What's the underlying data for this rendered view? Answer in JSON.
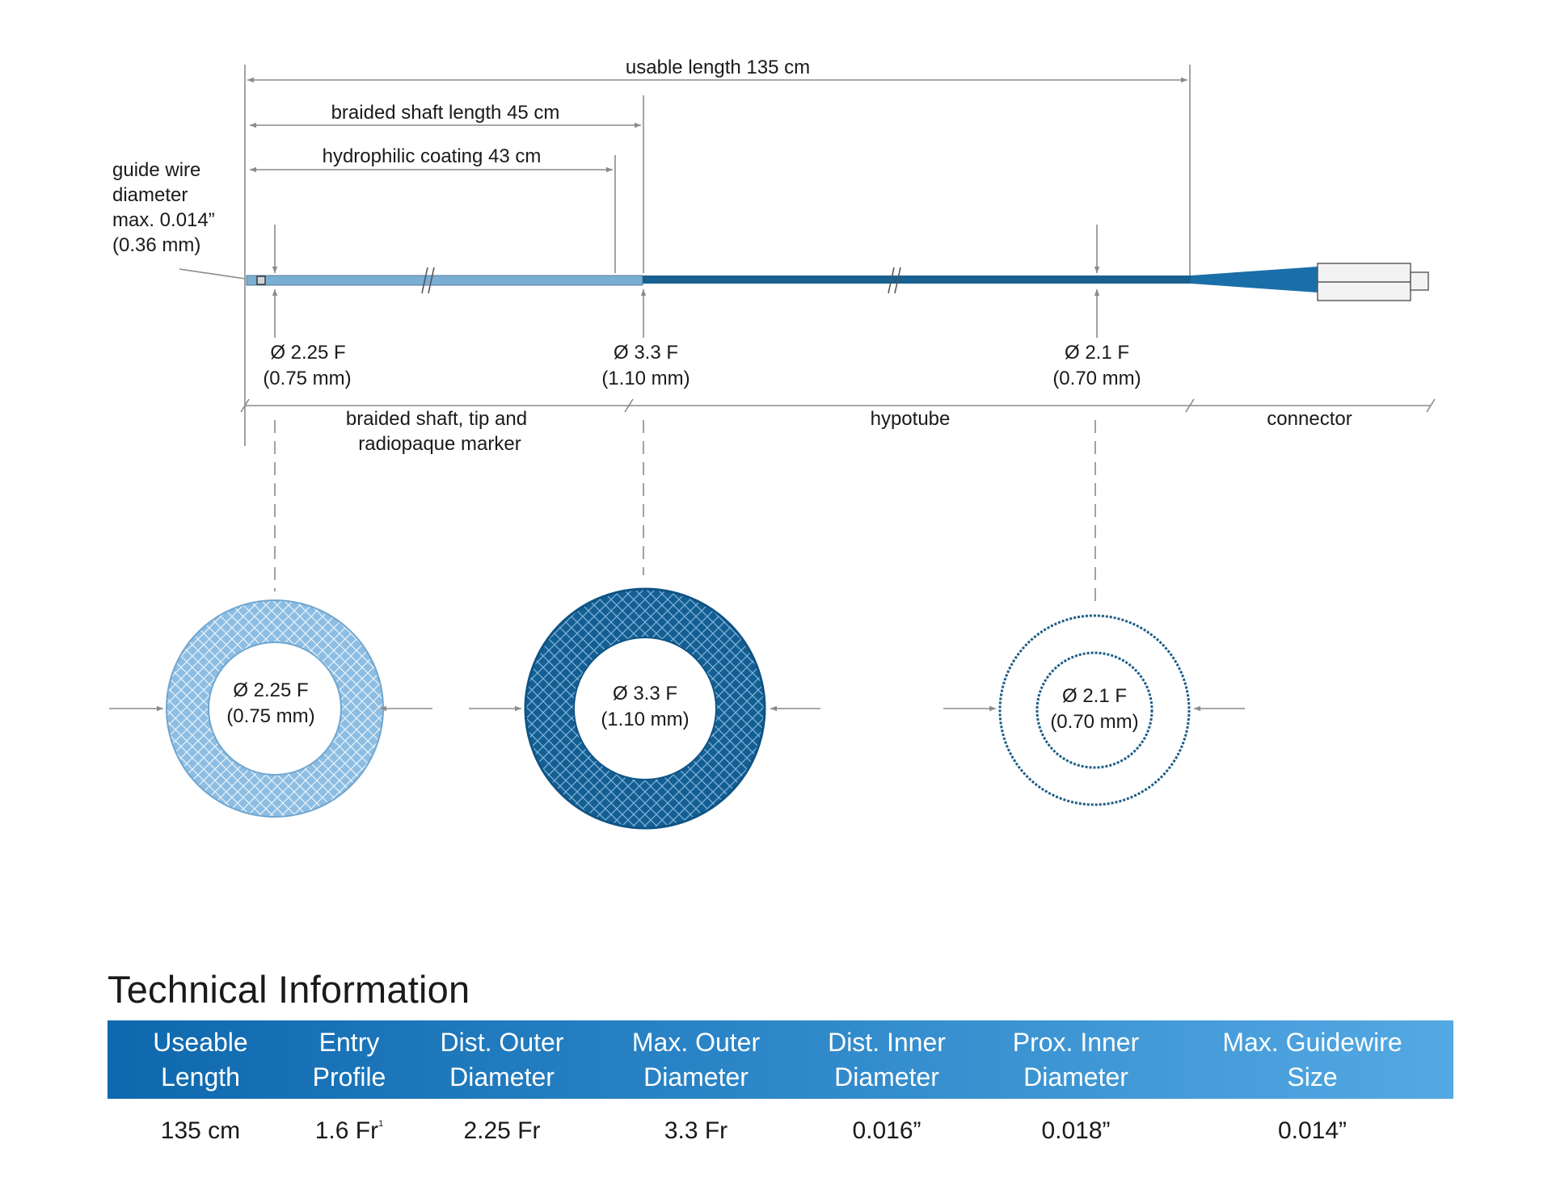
{
  "colors": {
    "light_shaft": "#7aaed3",
    "dark_shaft": "#17608f",
    "ring_light": "#8dbde2",
    "ring_dark": "#145f92",
    "hypotube_ring": "#1c5d86",
    "table_header_start": "#0f68ad",
    "table_header_end": "#54a9e3"
  },
  "dimensions": {
    "usable_length": "usable length 135 cm",
    "braided_shaft_length": "braided shaft length 45 cm",
    "hydrophilic_coating": "hydrophilic coating 43 cm",
    "guide_wire": [
      "guide wire",
      "diameter",
      "max. 0.014”",
      "(0.36 mm)"
    ]
  },
  "diameters": [
    {
      "line1": "Ø 2.25 F",
      "line2": "(0.75 mm)"
    },
    {
      "line1": "Ø 3.3 F",
      "line2": "(1.10 mm)"
    },
    {
      "line1": "Ø 2.1 F",
      "line2": "(0.70 mm)"
    }
  ],
  "sections": {
    "braided": [
      "braided shaft, tip and",
      "radiopaque marker"
    ],
    "hypotube": "hypotube",
    "connector": "connector"
  },
  "cross_sections": [
    {
      "line1": "Ø 2.25 F",
      "line2": "(0.75 mm)"
    },
    {
      "line1": "Ø 3.3 F",
      "line2": "(1.10 mm)"
    },
    {
      "line1": "Ø 2.1 F",
      "line2": "(0.70 mm)"
    }
  ],
  "technical_info": {
    "title": "Technical Information",
    "headers": [
      [
        "Useable",
        "Length"
      ],
      [
        "Entry",
        "Profile"
      ],
      [
        "Dist. Outer",
        "Diameter"
      ],
      [
        "Max. Outer",
        "Diameter"
      ],
      [
        "Dist. Inner",
        "Diameter"
      ],
      [
        "Prox. Inner",
        "Diameter"
      ],
      [
        "Max. Guidewire",
        "Size"
      ]
    ],
    "values": [
      "135 cm",
      "1.6 Fr",
      "2.25 Fr",
      "3.3 Fr",
      "0.016”",
      "0.018”",
      "0.014”"
    ],
    "footnote_mark": "1"
  }
}
